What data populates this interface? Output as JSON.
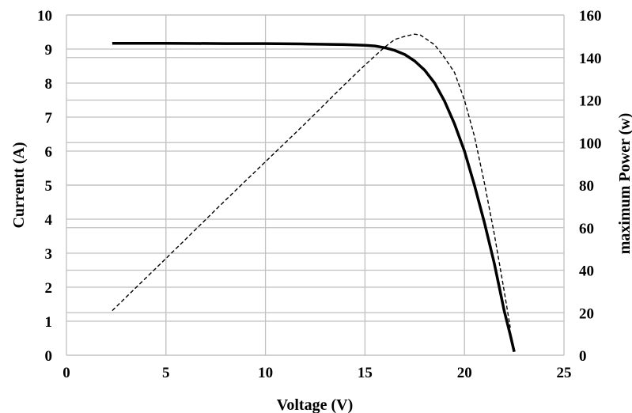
{
  "chart_data": {
    "type": "line",
    "xlabel": "Voltage (V)",
    "ylabel_left": "Currentt (A)",
    "ylabel_right": "maximum Power (w)",
    "xlim": [
      0,
      25
    ],
    "ylim_left": [
      0,
      10
    ],
    "ylim_right": [
      0,
      160
    ],
    "x_ticks": [
      "0",
      "5",
      "10",
      "15",
      "20",
      "25"
    ],
    "y_left_ticks": [
      "0",
      "1",
      "2",
      "3",
      "4",
      "5",
      "6",
      "7",
      "8",
      "9",
      "10"
    ],
    "y_right_ticks": [
      "0",
      "20",
      "40",
      "60",
      "80",
      "100",
      "120",
      "140",
      "160"
    ],
    "grid": true,
    "series": [
      {
        "axis": "left",
        "style": "solid",
        "color": "#000000",
        "x": [
          2.3,
          5,
          8,
          10,
          12,
          14,
          15,
          15.5,
          16,
          16.5,
          17,
          17.5,
          18,
          18.5,
          19,
          19.5,
          20,
          20.5,
          21,
          21.5,
          22,
          22.3,
          22.5
        ],
        "y": [
          9.17,
          9.17,
          9.16,
          9.16,
          9.15,
          9.13,
          9.11,
          9.09,
          9.04,
          8.96,
          8.84,
          8.65,
          8.38,
          8.0,
          7.47,
          6.8,
          6.0,
          5.0,
          3.9,
          2.7,
          1.3,
          0.6,
          0.1
        ]
      },
      {
        "axis": "right",
        "style": "dashed",
        "color": "#000000",
        "x": [
          2.3,
          5,
          8,
          10,
          12,
          14,
          15,
          16,
          16.5,
          17,
          17.5,
          17.8,
          18.5,
          19,
          19.5,
          20,
          20.5,
          21,
          21.5,
          22,
          22.3
        ],
        "y": [
          21,
          45.5,
          73,
          91,
          109,
          127.5,
          136.5,
          145,
          148.5,
          150,
          151,
          150.5,
          146,
          140,
          133,
          120,
          103,
          81,
          57,
          30,
          13
        ]
      }
    ]
  }
}
